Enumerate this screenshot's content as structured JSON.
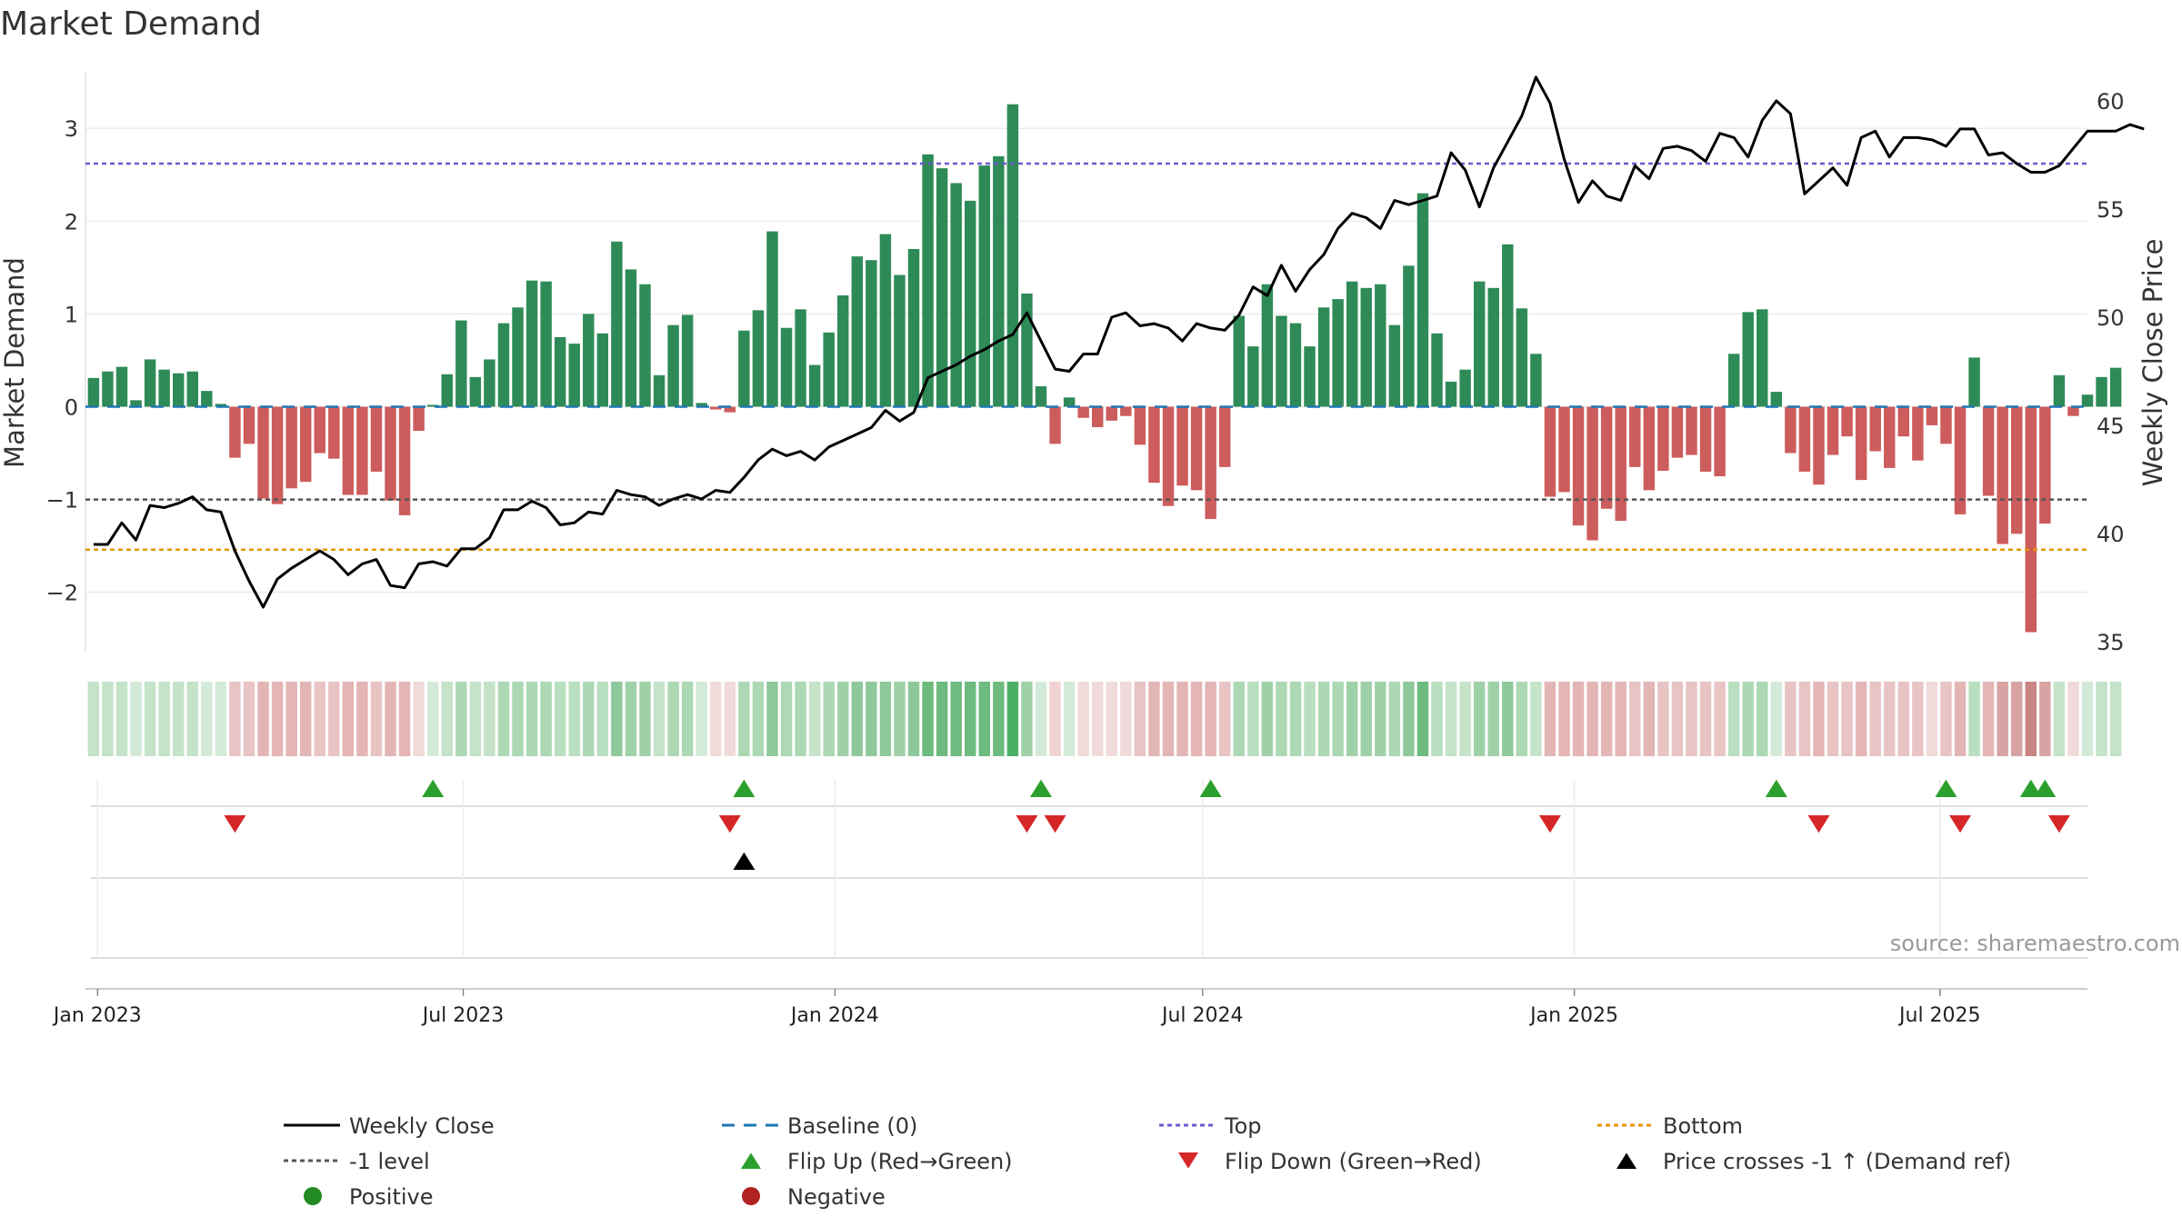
{
  "title": "Market Demand",
  "source": "source: sharemaestro.com",
  "colors": {
    "green_bar": "#2e8b57",
    "red_bar": "#cd5c5c",
    "price_line": "#000000",
    "baseline": "#1f77b4",
    "top": "#6a5acd",
    "bottom": "#e69500",
    "minus1": "#555555",
    "flip_up": "#2ca02c",
    "flip_down": "#d62728",
    "cross": "#000000",
    "positive": "#228b22",
    "negative": "#b22222"
  },
  "chart_data": {
    "type": "bar",
    "title": "Market Demand",
    "ylabel": "Market Demand",
    "y2label": "Weekly Close Price",
    "ylim": [
      -2.65,
      3.6
    ],
    "y2lim": [
      34.5,
      61.3
    ],
    "yticks": [
      3,
      2,
      1,
      0,
      -1,
      -2
    ],
    "ytick_labels": [
      "3",
      "2",
      "1",
      "0",
      "−1",
      "−2"
    ],
    "y2ticks": [
      60,
      55,
      50,
      45,
      40,
      35
    ],
    "y2tick_labels": [
      "60",
      "55",
      "50",
      "45",
      "40",
      "35"
    ],
    "x_start": "2022-12-26",
    "x_end": "2025-09-12",
    "xtick_dates": [
      "2023-01-01",
      "2023-07-01",
      "2024-01-01",
      "2024-07-01",
      "2025-01-01",
      "2025-07-01"
    ],
    "xtick_labels": [
      "Jan 2023",
      "Jul 2023",
      "Jan 2024",
      "Jul 2024",
      "Jan 2025",
      "Jul 2025"
    ],
    "first_bar_date": "2022-12-30",
    "bar_interval_days": 7,
    "demand": [
      0.31,
      0.38,
      0.43,
      0.07,
      0.51,
      0.4,
      0.36,
      0.38,
      0.17,
      0.03,
      -0.55,
      -0.4,
      -0.99,
      -1.05,
      -0.88,
      -0.81,
      -0.5,
      -0.56,
      -0.95,
      -0.95,
      -0.7,
      -1.01,
      -1.17,
      -0.26,
      0.02,
      0.35,
      0.93,
      0.32,
      0.51,
      0.9,
      1.07,
      1.36,
      1.35,
      0.75,
      0.68,
      1.0,
      0.79,
      1.78,
      1.48,
      1.32,
      0.34,
      0.88,
      0.99,
      0.04,
      -0.03,
      -0.06,
      0.82,
      1.04,
      1.89,
      0.85,
      1.05,
      0.45,
      0.8,
      1.2,
      1.62,
      1.58,
      1.86,
      1.42,
      1.7,
      2.72,
      2.57,
      2.41,
      2.22,
      2.6,
      2.7,
      3.26,
      1.22,
      0.22,
      -0.4,
      0.1,
      -0.12,
      -0.22,
      -0.15,
      -0.1,
      -0.41,
      -0.82,
      -1.07,
      -0.85,
      -0.9,
      -1.21,
      -0.65,
      0.98,
      0.65,
      1.32,
      0.98,
      0.9,
      0.65,
      1.07,
      1.16,
      1.35,
      1.28,
      1.32,
      0.88,
      1.52,
      2.3,
      0.79,
      0.27,
      0.4,
      1.35,
      1.28,
      1.75,
      1.06,
      0.57,
      -0.97,
      -0.92,
      -1.28,
      -1.44,
      -1.1,
      -1.23,
      -0.65,
      -0.9,
      -0.69,
      -0.55,
      -0.52,
      -0.7,
      -0.75,
      0.57,
      1.02,
      1.05,
      0.16,
      -0.5,
      -0.7,
      -0.84,
      -0.52,
      -0.32,
      -0.79,
      -0.48,
      -0.66,
      -0.32,
      -0.58,
      -0.2,
      -0.4,
      -1.16,
      0.53,
      -0.96,
      -1.48,
      -1.37,
      -2.43,
      -1.26,
      0.34,
      -0.1,
      0.13,
      0.32,
      0.42
    ],
    "price_start_date": "2022-12-30",
    "price_interval_days": 7,
    "price": [
      39.5,
      39.5,
      40.5,
      39.7,
      41.3,
      41.2,
      41.4,
      41.7,
      41.1,
      41.0,
      39.2,
      37.8,
      36.6,
      37.9,
      38.4,
      38.8,
      39.2,
      38.8,
      38.1,
      38.6,
      38.8,
      37.6,
      37.5,
      38.6,
      38.7,
      38.5,
      39.3,
      39.3,
      39.8,
      41.1,
      41.1,
      41.5,
      41.2,
      40.4,
      40.5,
      41.0,
      40.9,
      42.0,
      41.8,
      41.7,
      41.3,
      41.6,
      41.8,
      41.6,
      42.0,
      41.9,
      42.6,
      43.4,
      43.9,
      43.6,
      43.8,
      43.4,
      44.0,
      44.3,
      44.6,
      44.9,
      45.7,
      45.2,
      45.6,
      47.2,
      47.5,
      47.8,
      48.2,
      48.5,
      48.9,
      49.2,
      50.2,
      48.9,
      47.6,
      47.5,
      48.3,
      48.3,
      50.0,
      50.2,
      49.6,
      49.7,
      49.5,
      48.9,
      49.7,
      49.5,
      49.4,
      50.1,
      51.4,
      51.0,
      52.4,
      51.2,
      52.2,
      52.9,
      54.1,
      54.8,
      54.6,
      54.1,
      55.4,
      55.2,
      55.4,
      55.6,
      57.6,
      56.8,
      55.1,
      56.9,
      58.1,
      59.3,
      61.1,
      59.9,
      57.3,
      55.3,
      56.3,
      55.6,
      55.4,
      57.0,
      56.4,
      57.8,
      57.9,
      57.7,
      57.2,
      58.5,
      58.3,
      57.4,
      59.1,
      60.0,
      59.4,
      55.7,
      56.3,
      56.9,
      56.1,
      58.3,
      58.6,
      57.4,
      58.3,
      58.3,
      58.2,
      57.9,
      58.7,
      58.7,
      57.5,
      57.6,
      57.1,
      56.7,
      56.7,
      57.0,
      57.8,
      58.6,
      58.6,
      58.6,
      58.9,
      58.7
    ],
    "top": 2.62,
    "bottom": -1.54,
    "minus1": -1.0,
    "heat_colors": [
      "#c4e3c9",
      "#c4e3c9",
      "#c4e3c9",
      "#d4ead8",
      "#c4e3c9",
      "#c4e3c9",
      "#c4e3c9",
      "#c4e3c9",
      "#d4ead8",
      "#d4ead8",
      "#e8c4c4",
      "#e8c4c4",
      "#e3b5b5",
      "#e3b5b5",
      "#e3b5b5",
      "#e3b5b5",
      "#e8c4c4",
      "#e8c4c4",
      "#e3b5b5",
      "#e3b5b5",
      "#e8c4c4",
      "#e3b5b5",
      "#e3b5b5",
      "#f0dada",
      "#d4ead8",
      "#c4e3c9",
      "#acd8b4",
      "#c4e3c9",
      "#c4e3c9",
      "#acd8b4",
      "#acd8b4",
      "#acd8b4",
      "#acd8b4",
      "#b8dfbf",
      "#b8dfbf",
      "#acd8b4",
      "#b8dfbf",
      "#8ec99b",
      "#9fd1a8",
      "#9fd1a8",
      "#c4e3c9",
      "#acd8b4",
      "#acd8b4",
      "#d4ead8",
      "#f0dada",
      "#f0dada",
      "#acd8b4",
      "#acd8b4",
      "#8ec99b",
      "#acd8b4",
      "#acd8b4",
      "#c4e3c9",
      "#acd8b4",
      "#9fd1a8",
      "#8ec99b",
      "#8ec99b",
      "#8ec99b",
      "#9fd1a8",
      "#8ec99b",
      "#6dbb7e",
      "#6dbb7e",
      "#6dbb7e",
      "#6dbb7e",
      "#6dbb7e",
      "#6dbb7e",
      "#4caf66",
      "#9fd1a8",
      "#d4ead8",
      "#f0d2d2",
      "#d4ead8",
      "#f0dada",
      "#f0dada",
      "#f0dada",
      "#f0dada",
      "#e8c4c4",
      "#e3b5b5",
      "#e3b5b5",
      "#e3b5b5",
      "#e3b5b5",
      "#e3b5b5",
      "#e8c4c4",
      "#acd8b4",
      "#b8dfbf",
      "#9fd1a8",
      "#acd8b4",
      "#acd8b4",
      "#b8dfbf",
      "#acd8b4",
      "#acd8b4",
      "#9fd1a8",
      "#9fd1a8",
      "#9fd1a8",
      "#acd8b4",
      "#8ec99b",
      "#6dbb7e",
      "#b8dfbf",
      "#c4e3c9",
      "#c4e3c9",
      "#9fd1a8",
      "#9fd1a8",
      "#8ec99b",
      "#acd8b4",
      "#c4e3c9",
      "#e3b5b5",
      "#e3b5b5",
      "#e3b5b5",
      "#e3b5b5",
      "#e3b5b5",
      "#e3b5b5",
      "#e8c4c4",
      "#e3b5b5",
      "#e8c4c4",
      "#e8c4c4",
      "#e8c4c4",
      "#e8c4c4",
      "#e8c4c4",
      "#b8dfbf",
      "#acd8b4",
      "#acd8b4",
      "#d4ead8",
      "#e8c4c4",
      "#e8c4c4",
      "#e3b5b5",
      "#e8c4c4",
      "#e8c4c4",
      "#e3b5b5",
      "#e8c4c4",
      "#e8c4c4",
      "#e8c4c4",
      "#e8c4c4",
      "#f0dada",
      "#e8c4c4",
      "#e3b5b5",
      "#b8dfbf",
      "#e3b5b5",
      "#d9a3a3",
      "#d9a3a3",
      "#c98484",
      "#d9a3a3",
      "#c4e3c9",
      "#f0dada",
      "#d4ead8",
      "#c4e3c9",
      "#c4e3c9"
    ],
    "flip_up_dates": [
      "2023-06-16",
      "2023-11-17",
      "2024-04-12",
      "2024-07-05",
      "2025-04-11",
      "2025-07-04",
      "2025-08-15",
      "2025-08-22"
    ],
    "flip_down_dates": [
      "2023-03-10",
      "2023-11-10",
      "2024-04-05",
      "2024-04-19",
      "2024-12-20",
      "2025-05-02",
      "2025-07-11",
      "2025-08-29"
    ],
    "cross_dates": [
      "2023-11-17"
    ],
    "legend": [
      {
        "label": "Weekly Close",
        "marker": "line-solid",
        "color": "#000000"
      },
      {
        "label": "Baseline (0)",
        "marker": "line-dashed",
        "color": "#1f77b4"
      },
      {
        "label": "Top",
        "marker": "line-dotted",
        "color": "#6a5acd"
      },
      {
        "label": "Bottom",
        "marker": "line-dotted",
        "color": "#e69500"
      },
      {
        "label": "-1 level",
        "marker": "line-dotted",
        "color": "#555555"
      },
      {
        "label": "Flip Up (Red→Green)",
        "marker": "triangle-up",
        "color": "#2ca02c"
      },
      {
        "label": "Flip Down (Green→Red)",
        "marker": "triangle-down",
        "color": "#d62728"
      },
      {
        "label": "Price crosses -1 ↑ (Demand ref)",
        "marker": "triangle-up",
        "color": "#000000"
      },
      {
        "label": "Positive",
        "marker": "circle",
        "color": "#228b22"
      },
      {
        "label": "Negative",
        "marker": "circle",
        "color": "#b22222"
      }
    ]
  }
}
